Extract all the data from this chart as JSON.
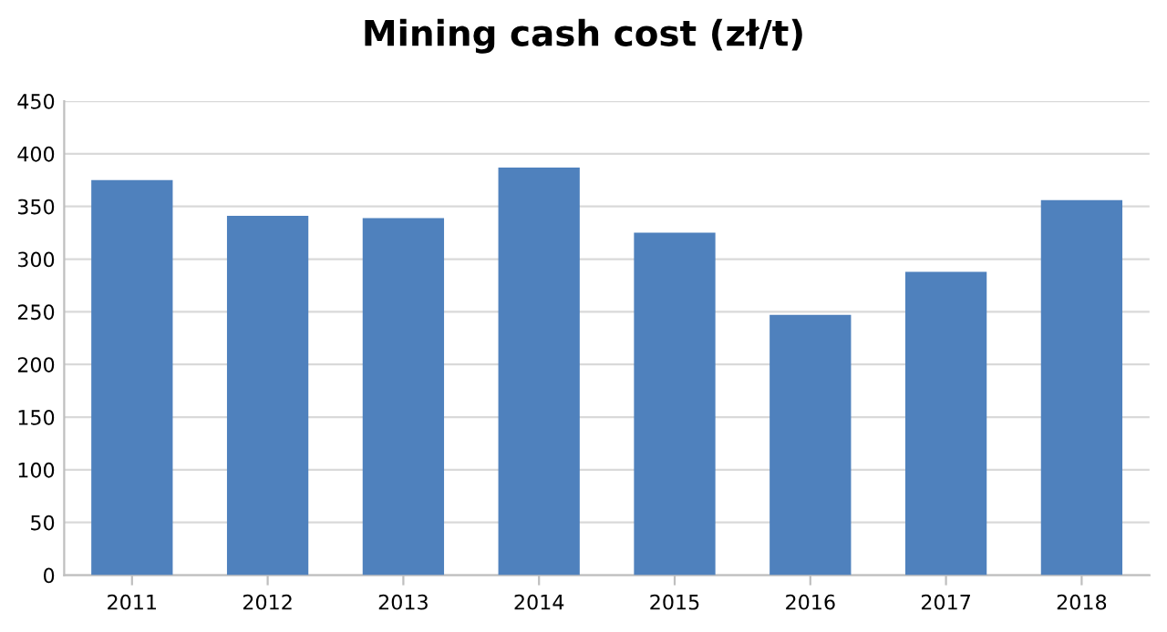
{
  "chart_data": {
    "type": "bar",
    "title": "Mining cash cost (zł/t)",
    "categories": [
      "2011",
      "2012",
      "2013",
      "2014",
      "2015",
      "2016",
      "2017",
      "2018"
    ],
    "values": [
      375,
      341,
      339,
      387,
      325,
      247,
      288,
      356
    ],
    "color": "#4f81bd",
    "ylim": [
      0,
      450
    ],
    "yticks": [
      0,
      50,
      100,
      150,
      200,
      250,
      300,
      350,
      400,
      450
    ],
    "grid": "y",
    "legend": false
  }
}
